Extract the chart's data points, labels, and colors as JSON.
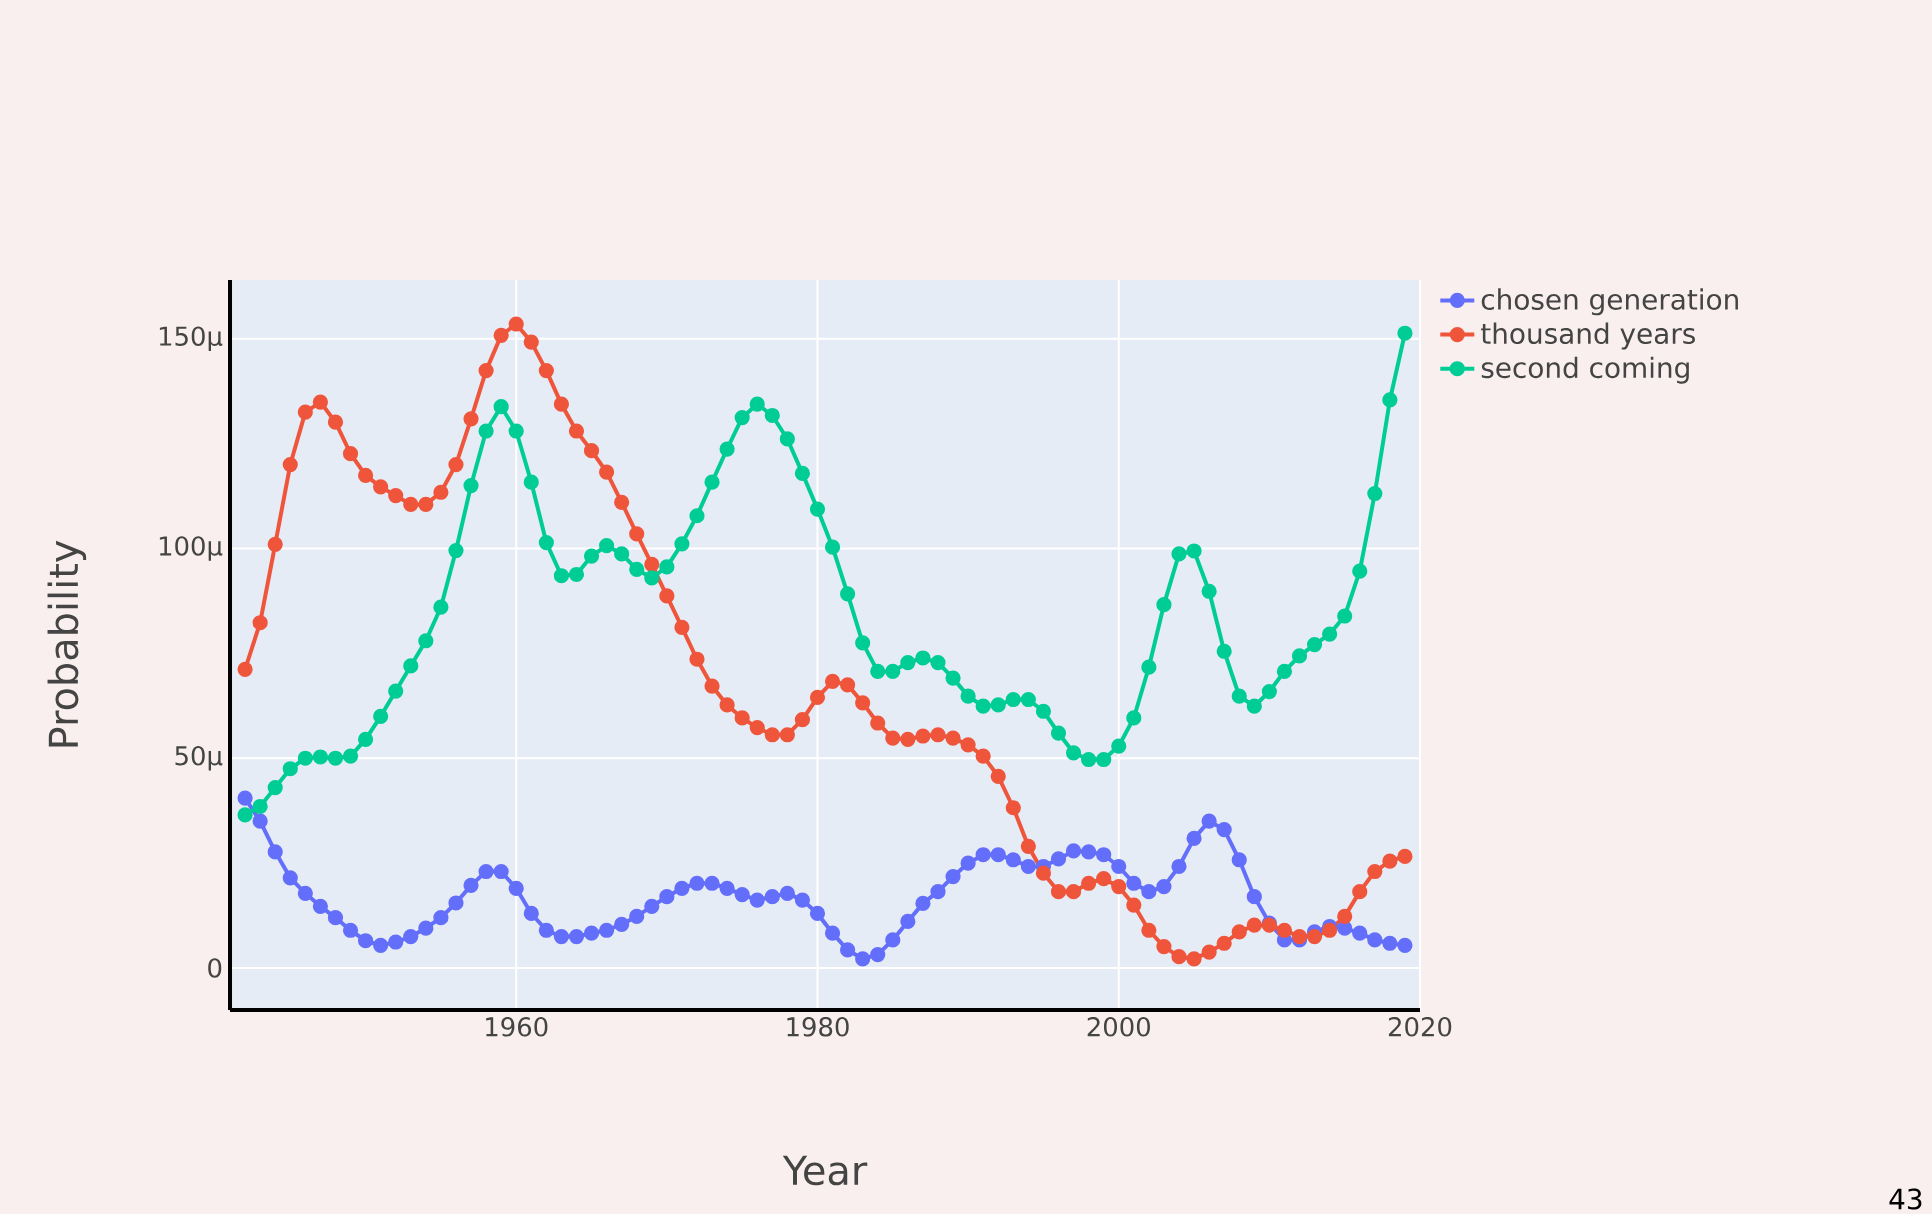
{
  "chart_data": {
    "type": "line",
    "xlabel": "Year",
    "ylabel": "Probability",
    "x": [
      1942,
      1943,
      1944,
      1945,
      1946,
      1947,
      1948,
      1949,
      1950,
      1951,
      1952,
      1953,
      1954,
      1955,
      1956,
      1957,
      1958,
      1959,
      1960,
      1961,
      1962,
      1963,
      1964,
      1965,
      1966,
      1967,
      1968,
      1969,
      1970,
      1971,
      1972,
      1973,
      1974,
      1975,
      1976,
      1977,
      1978,
      1979,
      1980,
      1981,
      1982,
      1983,
      1984,
      1985,
      1986,
      1987,
      1988,
      1989,
      1990,
      1991,
      1992,
      1993,
      1994,
      1995,
      1996,
      1997,
      1998,
      1999,
      2000,
      2001,
      2002,
      2003,
      2004,
      2005,
      2006,
      2007,
      2008,
      2009,
      2010,
      2011,
      2012,
      2013,
      2014,
      2015,
      2016,
      2017,
      2018,
      2019
    ],
    "series": [
      {
        "name": "chosen generation",
        "color": "#636efa",
        "values": [
          40.5,
          35,
          27.7,
          21.5,
          17.8,
          14.7,
          12,
          9,
          6.5,
          5.4,
          6.2,
          7.5,
          9.5,
          12,
          15.5,
          19.7,
          23,
          23,
          19,
          13,
          9,
          7.5,
          7.5,
          8.3,
          9,
          10.4,
          12.3,
          14.7,
          17,
          19,
          20.2,
          20.2,
          19,
          17.5,
          16.2,
          17,
          17.8,
          16.2,
          13,
          8.3,
          4.3,
          2.2,
          3.2,
          6.7,
          11.1,
          15.4,
          18.2,
          21.8,
          25,
          27,
          27,
          25.8,
          24.2,
          24.2,
          26,
          27.9,
          27.7,
          27,
          24.2,
          20.2,
          18.2,
          19.4,
          24.2,
          30.9,
          35,
          33,
          25.8,
          17,
          10.7,
          6.7,
          6.7,
          8.6,
          9.9,
          9.5,
          8.3,
          6.7,
          5.9,
          5.4
        ]
      },
      {
        "name": "thousand years",
        "color": "#ef553b",
        "values": [
          71.2,
          82.3,
          101,
          120,
          132.5,
          134.9,
          130.1,
          122.6,
          117.4,
          114.7,
          112.6,
          110.5,
          110.5,
          113.4,
          120,
          130.9,
          142.4,
          150.8,
          153.5,
          149.2,
          142.4,
          134.4,
          128,
          123.3,
          118.2,
          111,
          103.5,
          96.2,
          88.7,
          81.2,
          73.6,
          67.2,
          62.7,
          59.6,
          57.3,
          55.6,
          55.6,
          59.2,
          64.5,
          68.3,
          67.5,
          63.2,
          58.4,
          54.8,
          54.5,
          55.3,
          55.6,
          54.8,
          53.2,
          50.5,
          45.7,
          38.2,
          29,
          22.6,
          18.2,
          18.2,
          20.2,
          21.3,
          19.4,
          15,
          9,
          5.1,
          2.7,
          2.2,
          3.8,
          5.9,
          8.6,
          10.2,
          10.2,
          9,
          7.5,
          7.5,
          9,
          12.3,
          18.2,
          23,
          25.5,
          26.6
        ]
      },
      {
        "name": "second coming",
        "color": "#00cc96",
        "values": [
          36.5,
          38.5,
          43,
          47.5,
          50,
          50.3,
          50,
          50.5,
          54.5,
          60,
          66,
          72,
          78,
          86,
          99.5,
          115,
          128,
          133.8,
          128,
          115.8,
          101.4,
          93.5,
          93.8,
          98.2,
          100.7,
          98.7,
          95,
          93,
          95.6,
          101.1,
          107.8,
          115.8,
          123.7,
          131.2,
          134.4,
          131.7,
          126.1,
          117.9,
          109.4,
          100.3,
          89.2,
          77.5,
          70.7,
          70.7,
          72.8,
          73.9,
          72.8,
          69.1,
          64.8,
          62.4,
          62.7,
          64,
          64,
          61.2,
          56,
          51.3,
          49.7,
          49.7,
          52.9,
          59.6,
          71.7,
          86.6,
          98.7,
          99.4,
          89.8,
          75.5,
          64.8,
          62.4,
          65.9,
          70.7,
          74.4,
          77.1,
          79.6,
          83.9,
          94.6,
          113.1,
          135.4,
          151.3
        ]
      }
    ],
    "xlim": [
      1941,
      2020
    ],
    "xticks": [
      1960,
      1980,
      2000,
      2020
    ],
    "ylim": [
      -10,
      164
    ],
    "yticks": [
      {
        "value": 0,
        "label": "0"
      },
      {
        "value": 50,
        "label": "50μ"
      },
      {
        "value": 100,
        "label": "100μ"
      },
      {
        "value": 150,
        "label": "150μ"
      }
    ],
    "grid": true,
    "legend": "top right",
    "marker": "circle",
    "line_style": "solid",
    "annotations": [
      "43"
    ]
  }
}
